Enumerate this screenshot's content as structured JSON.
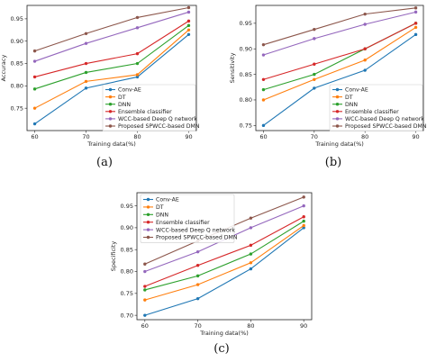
{
  "chart_data": [
    {
      "type": "line",
      "panel_label": "(a)",
      "x": [
        60,
        70,
        80,
        90
      ],
      "xlabel": "Training data(%)",
      "ylabel": "Accuracy",
      "ylim": [
        0.7,
        0.98
      ],
      "yticks": [
        "0.75",
        "0.80",
        "0.85",
        "0.90",
        "0.95"
      ],
      "legend_position": "bottom-right",
      "series": [
        {
          "name": "Conv-AE",
          "color": "#1f77b4",
          "values": [
            0.715,
            0.795,
            0.82,
            0.915
          ]
        },
        {
          "name": "DT",
          "color": "#ff7f0e",
          "values": [
            0.75,
            0.81,
            0.825,
            0.925
          ]
        },
        {
          "name": "DNN",
          "color": "#2ca02c",
          "values": [
            0.793,
            0.83,
            0.85,
            0.935
          ]
        },
        {
          "name": "Ensemble classifier",
          "color": "#d62728",
          "values": [
            0.82,
            0.85,
            0.872,
            0.945
          ]
        },
        {
          "name": "WCC-based Deep Q network",
          "color": "#9467bd",
          "values": [
            0.855,
            0.895,
            0.93,
            0.965
          ]
        },
        {
          "name": "Proposed SPWCC-based DMN",
          "color": "#8c564b",
          "values": [
            0.878,
            0.917,
            0.953,
            0.975
          ]
        }
      ]
    },
    {
      "type": "line",
      "panel_label": "(b)",
      "x": [
        60,
        70,
        80,
        90
      ],
      "xlabel": "Training data(%)",
      "ylabel": "Sensitivity",
      "ylim": [
        0.74,
        0.985
      ],
      "yticks": [
        "0.75",
        "0.80",
        "0.85",
        "0.90",
        "0.95"
      ],
      "legend_position": "bottom-right",
      "series": [
        {
          "name": "Conv-AE",
          "color": "#1f77b4",
          "values": [
            0.75,
            0.823,
            0.858,
            0.928
          ]
        },
        {
          "name": "DT",
          "color": "#ff7f0e",
          "values": [
            0.8,
            0.84,
            0.878,
            0.942
          ]
        },
        {
          "name": "DNN",
          "color": "#2ca02c",
          "values": [
            0.82,
            0.85,
            0.9,
            0.95
          ]
        },
        {
          "name": "Ensemble classifier",
          "color": "#d62728",
          "values": [
            0.84,
            0.87,
            0.9,
            0.95
          ]
        },
        {
          "name": "WCC-based Deep Q network",
          "color": "#9467bd",
          "values": [
            0.888,
            0.92,
            0.948,
            0.972
          ]
        },
        {
          "name": "Proposed SPWCC-based DMN",
          "color": "#8c564b",
          "values": [
            0.908,
            0.938,
            0.968,
            0.98
          ]
        }
      ]
    },
    {
      "type": "line",
      "panel_label": "(c)",
      "x": [
        60,
        70,
        80,
        90
      ],
      "xlabel": "Training data(%)",
      "ylabel": "Specificity",
      "ylim": [
        0.69,
        0.98
      ],
      "yticks": [
        "0.70",
        "0.75",
        "0.80",
        "0.85",
        "0.90",
        "0.95"
      ],
      "legend_position": "top-left",
      "series": [
        {
          "name": "Conv-AE",
          "color": "#1f77b4",
          "values": [
            0.7,
            0.738,
            0.806,
            0.9
          ]
        },
        {
          "name": "DT",
          "color": "#ff7f0e",
          "values": [
            0.735,
            0.77,
            0.82,
            0.905
          ]
        },
        {
          "name": "DNN",
          "color": "#2ca02c",
          "values": [
            0.758,
            0.79,
            0.84,
            0.915
          ]
        },
        {
          "name": "Ensemble classifier",
          "color": "#d62728",
          "values": [
            0.766,
            0.814,
            0.86,
            0.925
          ]
        },
        {
          "name": "WCC-based Deep Q network",
          "color": "#9467bd",
          "values": [
            0.8,
            0.845,
            0.9,
            0.95
          ]
        },
        {
          "name": "Proposed SPWCC-based DMN",
          "color": "#8c564b",
          "values": [
            0.817,
            0.87,
            0.922,
            0.97
          ]
        }
      ]
    }
  ]
}
